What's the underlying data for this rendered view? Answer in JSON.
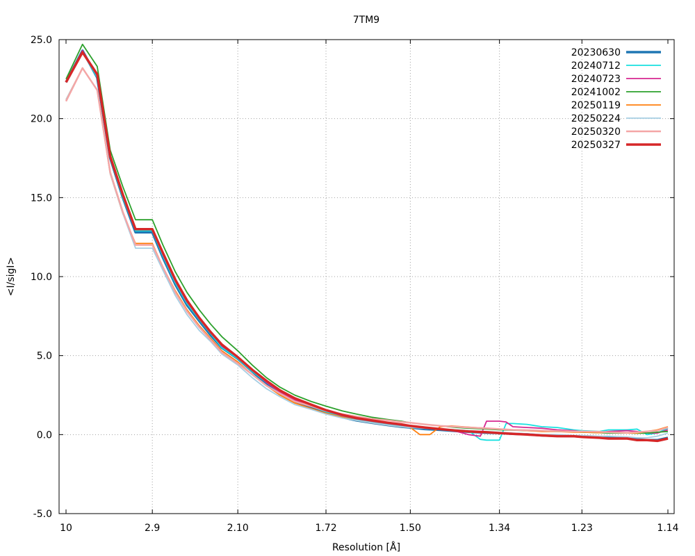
{
  "chart_data": {
    "type": "line",
    "title": "7TM9",
    "xlabel": "Resolution [Å]",
    "ylabel": "<I/sigI>",
    "x_scale": "inverse-square (1/d^2)",
    "ylim": [
      -5,
      25
    ],
    "xlim_resolution": [
      10,
      1.14
    ],
    "x_ticks": [
      "10",
      "2.9",
      "2.10",
      "1.72",
      "1.50",
      "1.34",
      "1.23",
      "1.14"
    ],
    "y_ticks": [
      "-5.0",
      "0.0",
      "5.0",
      "10.0",
      "15.0",
      "20.0",
      "25.0"
    ],
    "grid": true,
    "legend_position": "top-right",
    "colors": {
      "20230630": "#1f77b4",
      "20240712": "#17e0e0",
      "20240723": "#d62790",
      "20241002": "#2ca02c",
      "20250119": "#ff7f0e",
      "20250224": "#a6cee3",
      "20250320": "#f4a6a6",
      "20250327": "#d62728"
    },
    "series": [
      {
        "name": "20230630",
        "x": [
          10,
          5.7,
          4.5,
          3.9,
          3.5,
          3.2,
          2.9,
          2.75,
          2.6,
          2.48,
          2.37,
          2.28,
          2.2,
          2.1,
          2.02,
          1.95,
          1.89,
          1.83,
          1.77,
          1.72,
          1.67,
          1.63,
          1.59,
          1.55,
          1.52,
          1.5,
          1.47,
          1.44,
          1.41,
          1.39,
          1.36,
          1.34,
          1.32,
          1.3,
          1.28,
          1.26,
          1.24,
          1.23,
          1.21,
          1.2,
          1.18,
          1.17,
          1.16,
          1.15,
          1.14
        ],
        "y": [
          22.3,
          24.3,
          22.6,
          17.5,
          15.0,
          12.8,
          12.8,
          11.2,
          9.5,
          8.2,
          7.2,
          6.3,
          5.5,
          4.8,
          4.0,
          3.2,
          2.6,
          2.1,
          1.7,
          1.4,
          1.1,
          0.9,
          0.75,
          0.6,
          0.5,
          0.45,
          0.35,
          0.3,
          0.22,
          0.18,
          0.12,
          0.1,
          0.05,
          0.02,
          -0.05,
          -0.08,
          -0.1,
          -0.12,
          -0.15,
          -0.18,
          -0.2,
          -0.3,
          -0.35,
          -0.35,
          -0.2
        ]
      },
      {
        "name": "20240712",
        "x": [
          10,
          5.7,
          4.5,
          3.9,
          3.5,
          3.2,
          2.9,
          2.75,
          2.6,
          2.48,
          2.37,
          2.28,
          2.2,
          2.1,
          2.02,
          1.95,
          1.89,
          1.83,
          1.77,
          1.72,
          1.67,
          1.63,
          1.59,
          1.55,
          1.52,
          1.5,
          1.47,
          1.44,
          1.41,
          1.39,
          1.37,
          1.36,
          1.34,
          1.33,
          1.32,
          1.3,
          1.28,
          1.26,
          1.24,
          1.23,
          1.21,
          1.2,
          1.18,
          1.17,
          1.16,
          1.15,
          1.14
        ],
        "y": [
          22.3,
          24.2,
          22.6,
          17.5,
          15.0,
          12.9,
          12.9,
          11.3,
          9.6,
          8.3,
          7.3,
          6.4,
          5.5,
          4.8,
          4.0,
          3.3,
          2.7,
          2.2,
          1.8,
          1.45,
          1.15,
          0.95,
          0.8,
          0.65,
          0.55,
          0.5,
          0.4,
          0.35,
          0.3,
          0.25,
          -0.3,
          -0.35,
          -0.35,
          0.7,
          0.7,
          0.65,
          0.5,
          0.45,
          0.3,
          0.25,
          0.2,
          0.3,
          0.3,
          0.35,
          0.0,
          0.1,
          0.4
        ]
      },
      {
        "name": "20240723",
        "x": [
          10,
          5.7,
          4.5,
          3.9,
          3.5,
          3.2,
          2.9,
          2.75,
          2.6,
          2.48,
          2.37,
          2.28,
          2.2,
          2.1,
          2.02,
          1.95,
          1.89,
          1.83,
          1.77,
          1.72,
          1.67,
          1.63,
          1.59,
          1.55,
          1.52,
          1.5,
          1.47,
          1.44,
          1.41,
          1.39,
          1.37,
          1.36,
          1.34,
          1.33,
          1.32,
          1.3,
          1.28,
          1.26,
          1.24,
          1.23,
          1.21,
          1.2,
          1.18,
          1.17,
          1.16,
          1.15,
          1.14
        ],
        "y": [
          22.3,
          24.3,
          22.7,
          17.6,
          15.1,
          13.0,
          13.0,
          11.4,
          9.7,
          8.4,
          7.4,
          6.5,
          5.6,
          4.9,
          4.1,
          3.3,
          2.7,
          2.2,
          1.8,
          1.5,
          1.2,
          1.0,
          0.85,
          0.7,
          0.6,
          0.5,
          0.4,
          0.35,
          0.2,
          0.0,
          -0.1,
          0.85,
          0.85,
          0.8,
          0.5,
          0.45,
          0.4,
          0.3,
          0.25,
          0.2,
          0.15,
          0.2,
          0.25,
          0.2,
          0.1,
          0.1,
          0.3
        ]
      },
      {
        "name": "20241002",
        "x": [
          10,
          5.7,
          4.5,
          3.9,
          3.5,
          3.2,
          2.9,
          2.75,
          2.6,
          2.48,
          2.37,
          2.28,
          2.2,
          2.1,
          2.02,
          1.95,
          1.89,
          1.83,
          1.77,
          1.72,
          1.67,
          1.63,
          1.59,
          1.55,
          1.52,
          1.5,
          1.47,
          1.44,
          1.41,
          1.39,
          1.36,
          1.34,
          1.32,
          1.3,
          1.28,
          1.26,
          1.24,
          1.23,
          1.21,
          1.2,
          1.18,
          1.17,
          1.16,
          1.15,
          1.14
        ],
        "y": [
          22.5,
          24.7,
          23.3,
          18.0,
          15.7,
          13.6,
          13.6,
          12.0,
          10.3,
          9.0,
          7.9,
          7.0,
          6.2,
          5.3,
          4.4,
          3.6,
          3.0,
          2.5,
          2.1,
          1.8,
          1.5,
          1.3,
          1.1,
          0.95,
          0.85,
          0.75,
          0.65,
          0.55,
          0.45,
          0.4,
          0.35,
          0.3,
          0.28,
          0.25,
          0.22,
          0.2,
          0.18,
          0.15,
          0.12,
          0.1,
          0.1,
          0.08,
          0.1,
          0.15,
          0.2
        ]
      },
      {
        "name": "20250119",
        "x": [
          10,
          5.7,
          4.5,
          3.9,
          3.5,
          3.2,
          2.9,
          2.75,
          2.6,
          2.48,
          2.37,
          2.28,
          2.2,
          2.1,
          2.02,
          1.95,
          1.89,
          1.83,
          1.77,
          1.72,
          1.67,
          1.63,
          1.59,
          1.55,
          1.52,
          1.5,
          1.48,
          1.46,
          1.44,
          1.42,
          1.4,
          1.38,
          1.36,
          1.34,
          1.32,
          1.3,
          1.28,
          1.26,
          1.24,
          1.23,
          1.21,
          1.2,
          1.18,
          1.17,
          1.16,
          1.15,
          1.14
        ],
        "y": [
          21.2,
          23.2,
          21.8,
          16.5,
          14.0,
          12.1,
          12.1,
          10.6,
          9.1,
          7.9,
          6.9,
          6.1,
          5.3,
          4.6,
          3.8,
          3.1,
          2.5,
          2.0,
          1.65,
          1.35,
          1.1,
          0.9,
          0.75,
          0.6,
          0.5,
          0.45,
          0.0,
          0.0,
          0.5,
          0.55,
          0.5,
          0.45,
          0.4,
          0.35,
          0.3,
          0.25,
          0.2,
          0.2,
          0.15,
          0.15,
          0.12,
          0.15,
          0.1,
          0.1,
          0.2,
          0.3,
          0.5
        ]
      },
      {
        "name": "20250224",
        "x": [
          10,
          5.7,
          4.5,
          3.9,
          3.5,
          3.2,
          2.9,
          2.75,
          2.6,
          2.48,
          2.37,
          2.28,
          2.2,
          2.1,
          2.02,
          1.95,
          1.89,
          1.83,
          1.77,
          1.72,
          1.67,
          1.63,
          1.59,
          1.55,
          1.52,
          1.5,
          1.47,
          1.44,
          1.41,
          1.39,
          1.36,
          1.34,
          1.32,
          1.3,
          1.28,
          1.26,
          1.24,
          1.23,
          1.21,
          1.2,
          1.18,
          1.17,
          1.16,
          1.15,
          1.14
        ],
        "y": [
          21.2,
          23.2,
          21.8,
          16.5,
          14.0,
          11.8,
          11.8,
          10.4,
          8.8,
          7.6,
          6.6,
          5.9,
          5.1,
          4.4,
          3.6,
          2.9,
          2.4,
          1.9,
          1.6,
          1.3,
          1.05,
          0.9,
          0.75,
          0.6,
          0.5,
          0.45,
          0.4,
          0.35,
          0.3,
          0.25,
          0.2,
          0.15,
          0.1,
          0.05,
          0.0,
          0.0,
          -0.05,
          -0.05,
          -0.1,
          -0.1,
          -0.15,
          -0.2,
          -0.2,
          -0.1,
          0.1
        ]
      },
      {
        "name": "20250320",
        "x": [
          10,
          5.7,
          4.5,
          3.9,
          3.5,
          3.2,
          2.9,
          2.75,
          2.6,
          2.48,
          2.37,
          2.28,
          2.2,
          2.1,
          2.02,
          1.95,
          1.89,
          1.83,
          1.77,
          1.72,
          1.67,
          1.63,
          1.59,
          1.55,
          1.52,
          1.5,
          1.47,
          1.44,
          1.41,
          1.39,
          1.36,
          1.34,
          1.32,
          1.3,
          1.28,
          1.26,
          1.24,
          1.23,
          1.21,
          1.2,
          1.18,
          1.17,
          1.16,
          1.15,
          1.14
        ],
        "y": [
          21.1,
          23.2,
          21.8,
          16.6,
          14.1,
          12.0,
          12.0,
          10.6,
          9.0,
          7.8,
          6.8,
          6.0,
          5.2,
          4.5,
          3.8,
          3.1,
          2.6,
          2.1,
          1.8,
          1.5,
          1.3,
          1.15,
          1.0,
          0.9,
          0.8,
          0.75,
          0.65,
          0.55,
          0.5,
          0.45,
          0.4,
          0.35,
          0.3,
          0.28,
          0.25,
          0.22,
          0.2,
          0.2,
          0.18,
          0.15,
          0.12,
          0.15,
          0.2,
          0.25,
          0.45
        ]
      },
      {
        "name": "20250327",
        "x": [
          10,
          5.7,
          4.5,
          3.9,
          3.5,
          3.2,
          2.9,
          2.75,
          2.6,
          2.48,
          2.37,
          2.28,
          2.2,
          2.1,
          2.02,
          1.95,
          1.89,
          1.83,
          1.77,
          1.72,
          1.67,
          1.63,
          1.59,
          1.55,
          1.52,
          1.5,
          1.47,
          1.44,
          1.41,
          1.39,
          1.36,
          1.34,
          1.32,
          1.3,
          1.28,
          1.26,
          1.24,
          1.23,
          1.21,
          1.2,
          1.18,
          1.17,
          1.16,
          1.15,
          1.14
        ],
        "y": [
          22.3,
          24.2,
          22.8,
          17.6,
          15.2,
          13.0,
          13.0,
          11.5,
          9.8,
          8.5,
          7.4,
          6.5,
          5.7,
          4.9,
          4.1,
          3.4,
          2.8,
          2.3,
          1.9,
          1.55,
          1.25,
          1.05,
          0.9,
          0.75,
          0.65,
          0.55,
          0.45,
          0.35,
          0.25,
          0.2,
          0.15,
          0.1,
          0.05,
          0.0,
          -0.05,
          -0.1,
          -0.1,
          -0.15,
          -0.2,
          -0.25,
          -0.25,
          -0.35,
          -0.35,
          -0.4,
          -0.25
        ]
      }
    ]
  }
}
